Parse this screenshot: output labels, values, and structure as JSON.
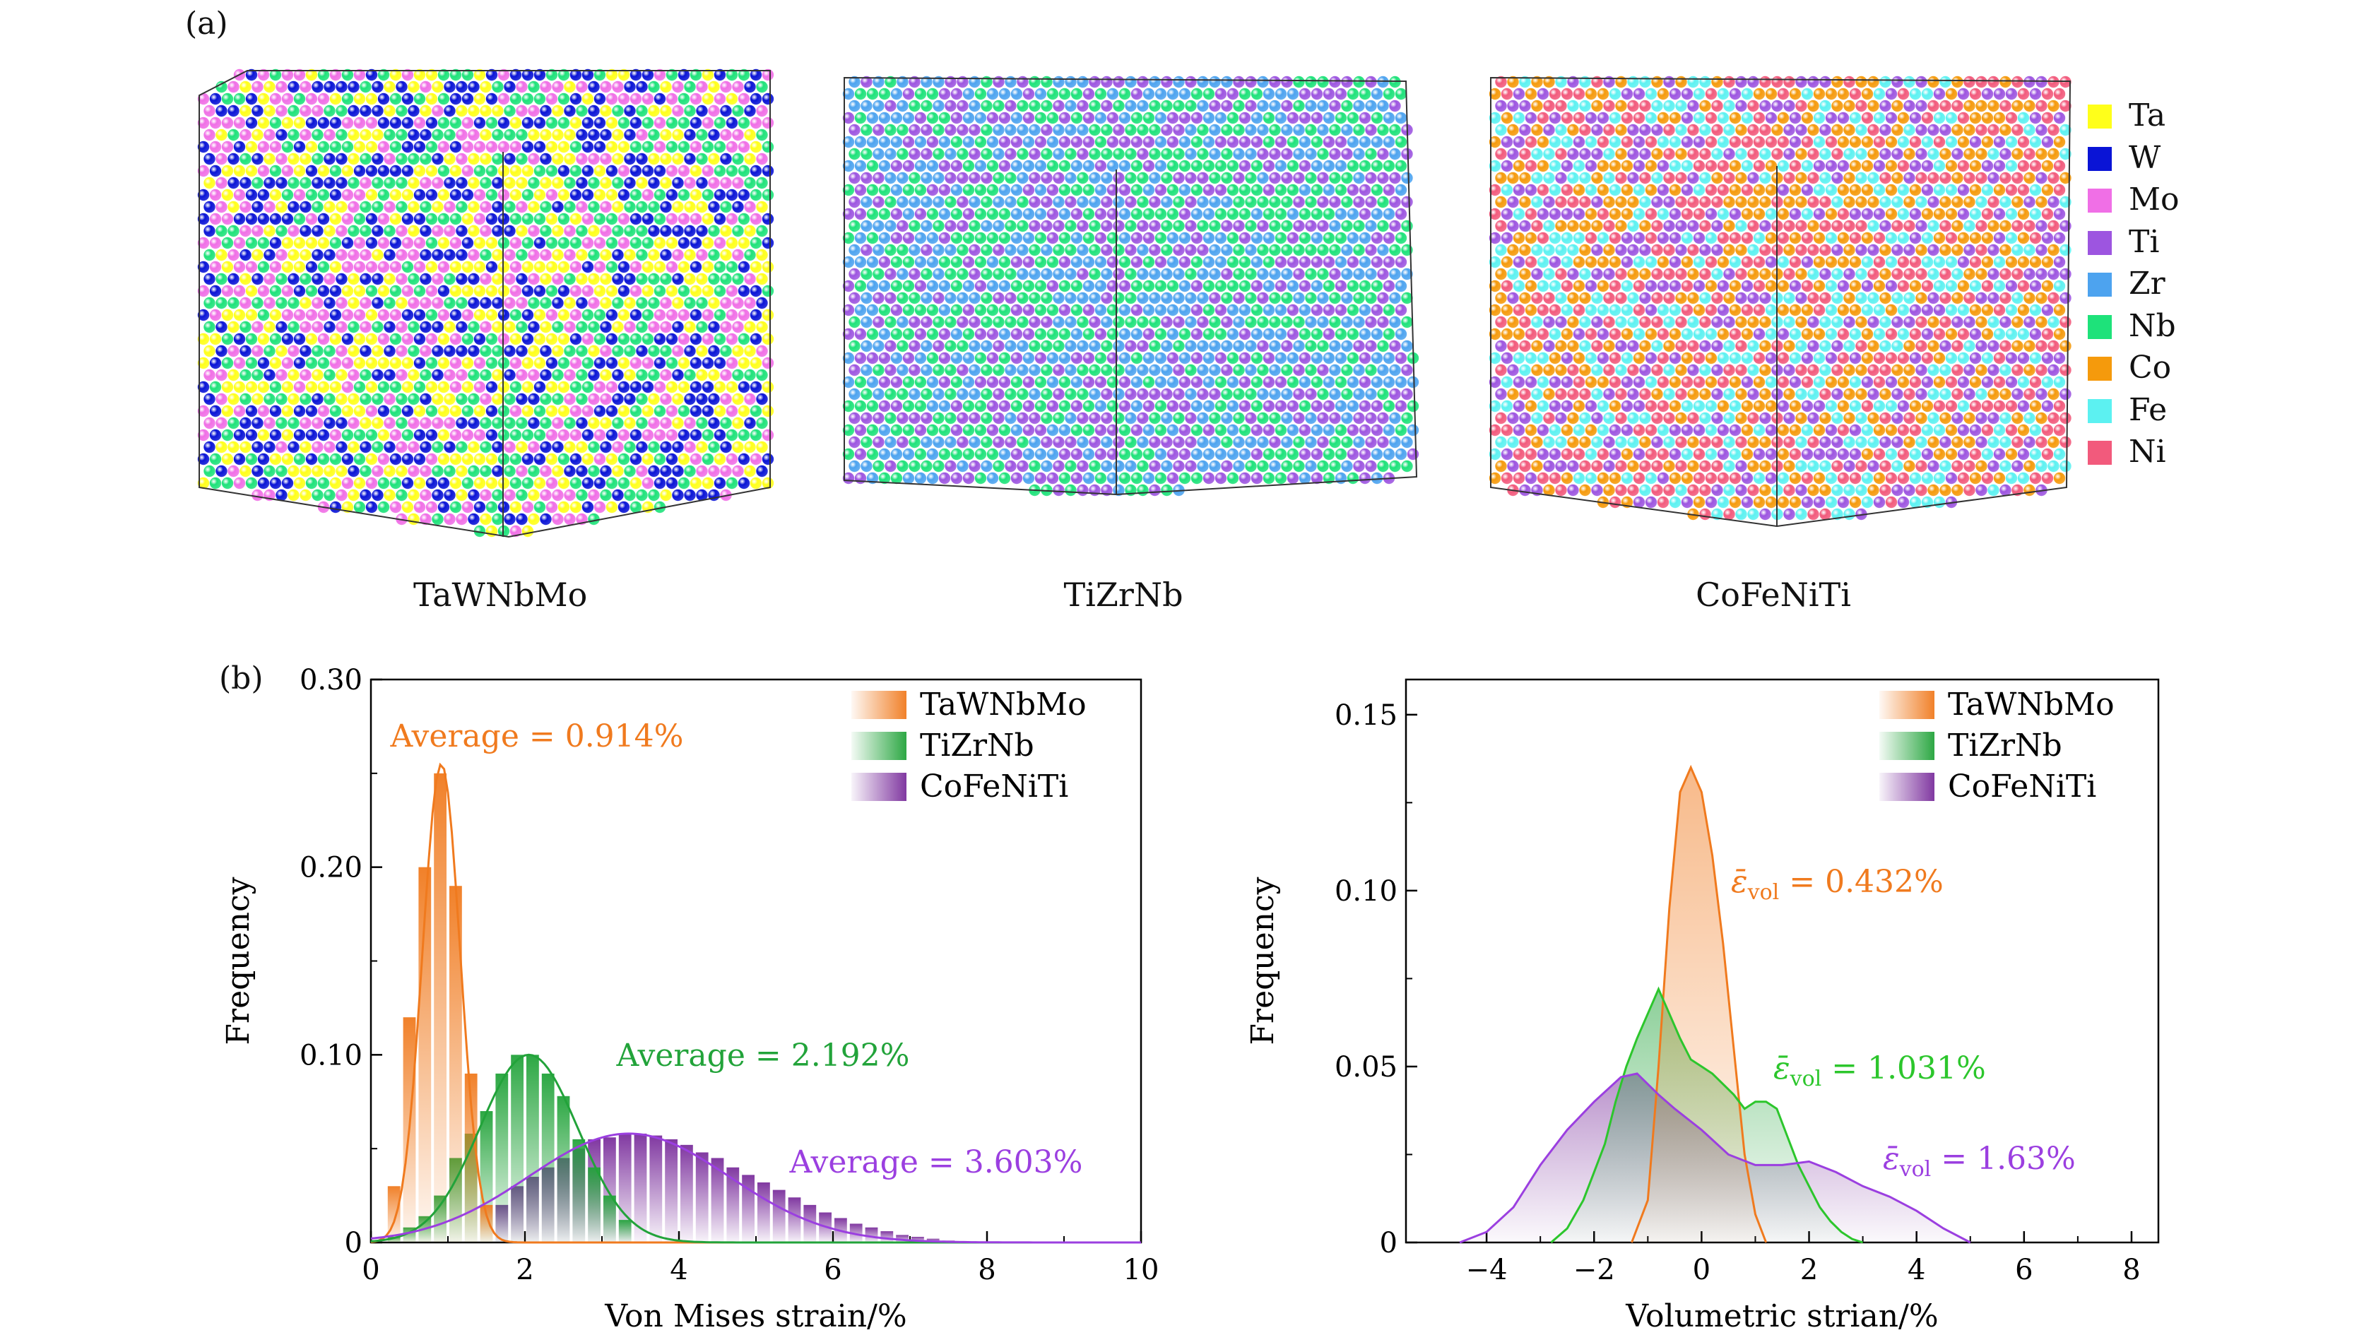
{
  "panel_a": {
    "label": "(a)",
    "cubes": [
      {
        "caption": "TaWNbMo",
        "elements": [
          "Ta",
          "W",
          "Mo",
          "Nb"
        ]
      },
      {
        "caption": "TiZrNb",
        "elements": [
          "Ti",
          "Zr",
          "Nb"
        ]
      },
      {
        "caption": "CoFeNiTi",
        "elements": [
          "Co",
          "Fe",
          "Ni",
          "Ti"
        ]
      }
    ],
    "legend": [
      {
        "name": "Ta",
        "color": "#ffff1a"
      },
      {
        "name": "W",
        "color": "#0a14d6"
      },
      {
        "name": "Mo",
        "color": "#f06fe6"
      },
      {
        "name": "Ti",
        "color": "#9d55e0"
      },
      {
        "name": "Zr",
        "color": "#4da3ef"
      },
      {
        "name": "Nb",
        "color": "#1ee27a"
      },
      {
        "name": "Co",
        "color": "#f59a0c"
      },
      {
        "name": "Fe",
        "color": "#5cf1f1"
      },
      {
        "name": "Ni",
        "color": "#f25a7c"
      }
    ]
  },
  "panel_b": {
    "label": "(b)"
  },
  "colors": {
    "orange": "#f07a1e",
    "green": "#22a33a",
    "purple": "#7a2e9c",
    "purple_line": "#9b3fe0",
    "green_line_right": "#2cc62c"
  },
  "chart_data": [
    {
      "type": "bar",
      "xlabel": "Von Mises strain/%",
      "ylabel": "Frequency",
      "xlim": [
        0,
        10
      ],
      "ylim": [
        0,
        0.3
      ],
      "xticks": [
        "0",
        "2",
        "4",
        "6",
        "8",
        "10"
      ],
      "yticks": [
        "0",
        "0.10",
        "0.20",
        "0.30"
      ],
      "legend": [
        "TaWNbMo",
        "TiZrNb",
        "CoFeNiTi"
      ],
      "legend_position": "top-right",
      "annotations": [
        "Average = 0.914%",
        "Average = 2.192%",
        "Average = 3.603%"
      ],
      "bin_width": 0.2,
      "series": [
        {
          "name": "TaWNbMo",
          "bin_start": [
            0.2,
            0.4,
            0.6,
            0.8,
            1.0,
            1.2,
            1.4
          ],
          "values": [
            0.03,
            0.12,
            0.2,
            0.25,
            0.19,
            0.09,
            0.02
          ],
          "fit_mean": 0.914,
          "fit_sigma": 0.245,
          "fit_peak": 0.255
        },
        {
          "name": "TiZrNb",
          "bin_start": [
            0.2,
            0.4,
            0.6,
            0.8,
            1.0,
            1.2,
            1.4,
            1.6,
            1.8,
            2.0,
            2.2,
            2.4,
            2.6,
            2.8,
            3.0,
            3.2
          ],
          "values": [
            0.003,
            0.008,
            0.014,
            0.025,
            0.045,
            0.058,
            0.07,
            0.09,
            0.1,
            0.1,
            0.09,
            0.078,
            0.055,
            0.04,
            0.025,
            0.012
          ],
          "fit_mean": 2.05,
          "fit_sigma": 0.64,
          "fit_peak": 0.1
        },
        {
          "name": "CoFeNiTi",
          "bin_start": [
            1.6,
            1.8,
            2.0,
            2.2,
            2.4,
            2.6,
            2.8,
            3.0,
            3.2,
            3.4,
            3.6,
            3.8,
            4.0,
            4.2,
            4.4,
            4.6,
            4.8,
            5.0,
            5.2,
            5.4,
            5.6,
            5.8,
            6.0,
            6.2,
            6.4,
            6.6,
            6.8,
            7.0,
            7.2,
            7.4
          ],
          "values": [
            0.02,
            0.03,
            0.035,
            0.04,
            0.045,
            0.05,
            0.055,
            0.056,
            0.058,
            0.058,
            0.057,
            0.055,
            0.052,
            0.048,
            0.045,
            0.04,
            0.036,
            0.032,
            0.028,
            0.024,
            0.02,
            0.016,
            0.013,
            0.01,
            0.008,
            0.006,
            0.004,
            0.003,
            0.002,
            0.001
          ],
          "fit_mean": 3.35,
          "fit_sigma": 1.3,
          "fit_peak": 0.058
        }
      ]
    },
    {
      "type": "line",
      "xlabel": "Volumetric strian/%",
      "ylabel": "Frequency",
      "xlim": [
        -5.5,
        8.5
      ],
      "ylim": [
        0,
        0.16
      ],
      "xticks": [
        "−4",
        "−2",
        "0",
        "2",
        "4",
        "6",
        "8"
      ],
      "yticks": [
        "0",
        "0.05",
        "0.10",
        "0.15"
      ],
      "legend": [
        "TaWNbMo",
        "TiZrNb",
        "CoFeNiTi"
      ],
      "legend_position": "top-right",
      "annotations": [
        {
          "prefix": "ε̄",
          "sub": "vol",
          "text": " = 0.432%"
        },
        {
          "prefix": "ε̄",
          "sub": "vol",
          "text": " = 1.031%"
        },
        {
          "prefix": "ε̄",
          "sub": "vol",
          "text": " = 1.63%"
        }
      ],
      "series": [
        {
          "name": "TaWNbMo",
          "x": [
            -1.3,
            -1.0,
            -0.8,
            -0.6,
            -0.4,
            -0.2,
            0.0,
            0.2,
            0.4,
            0.6,
            0.8,
            1.0,
            1.2
          ],
          "y": [
            0.0,
            0.012,
            0.05,
            0.095,
            0.128,
            0.135,
            0.128,
            0.11,
            0.085,
            0.055,
            0.025,
            0.008,
            0.0
          ]
        },
        {
          "name": "TiZrNb",
          "x": [
            -2.8,
            -2.5,
            -2.2,
            -2.0,
            -1.8,
            -1.6,
            -1.4,
            -1.2,
            -1.0,
            -0.8,
            -0.6,
            -0.4,
            -0.2,
            0.0,
            0.2,
            0.4,
            0.6,
            0.8,
            1.0,
            1.2,
            1.4,
            1.6,
            1.8,
            2.0,
            2.2,
            2.4,
            2.6,
            2.8,
            3.0
          ],
          "y": [
            0.0,
            0.004,
            0.012,
            0.02,
            0.028,
            0.04,
            0.05,
            0.058,
            0.065,
            0.072,
            0.065,
            0.058,
            0.052,
            0.05,
            0.048,
            0.045,
            0.042,
            0.038,
            0.04,
            0.04,
            0.038,
            0.03,
            0.022,
            0.016,
            0.01,
            0.006,
            0.003,
            0.001,
            0.0
          ]
        },
        {
          "name": "CoFeNiTi",
          "x": [
            -4.5,
            -4.0,
            -3.5,
            -3.0,
            -2.5,
            -2.0,
            -1.5,
            -1.2,
            -1.0,
            -0.8,
            -0.5,
            0.0,
            0.5,
            1.0,
            1.5,
            2.0,
            2.5,
            3.0,
            3.5,
            4.0,
            4.5,
            5.0
          ],
          "y": [
            0.0,
            0.003,
            0.01,
            0.022,
            0.032,
            0.04,
            0.047,
            0.048,
            0.045,
            0.042,
            0.038,
            0.032,
            0.025,
            0.022,
            0.022,
            0.023,
            0.02,
            0.016,
            0.013,
            0.009,
            0.004,
            0.0
          ]
        }
      ]
    }
  ]
}
